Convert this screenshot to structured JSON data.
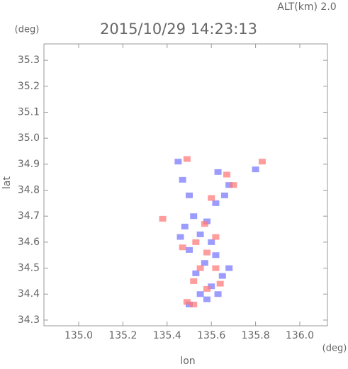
{
  "chart_data": {
    "type": "scatter",
    "title": "2015/10/29 14:23:13",
    "subtitle": "ALT(km) 2.0",
    "y_unit": "(deg)",
    "x_unit": "(deg)",
    "x_label": "lon",
    "y_label": "lat",
    "xlim": [
      134.843,
      136.125
    ],
    "ylim": [
      34.278,
      35.363
    ],
    "xticks": [
      {
        "value": 135.0,
        "label": "135.0"
      },
      135.2,
      135.4,
      135.6,
      135.8,
      {
        "value": 136.0,
        "label": "136.0"
      }
    ],
    "yticks": [
      34.3,
      34.4,
      34.5,
      34.6,
      34.7,
      34.8,
      34.9,
      {
        "value": 35.0,
        "label": "35.0"
      },
      35.1,
      35.2,
      35.3
    ],
    "series": [
      {
        "color": "#7b7bff",
        "x": [
          135.45,
          135.47,
          135.5,
          135.63,
          135.68,
          135.8,
          135.52,
          135.48,
          135.58,
          135.55,
          135.6,
          135.5,
          135.62,
          135.57,
          135.53,
          135.65,
          135.6,
          135.63,
          135.55,
          135.58,
          135.5,
          135.68,
          135.46,
          135.62,
          135.66
        ],
        "y": [
          34.91,
          34.84,
          34.78,
          34.87,
          34.82,
          34.88,
          34.7,
          34.66,
          34.68,
          34.63,
          34.6,
          34.57,
          34.55,
          34.52,
          34.48,
          34.47,
          34.43,
          34.4,
          34.4,
          34.38,
          34.36,
          34.5,
          34.62,
          34.75,
          34.78
        ]
      },
      {
        "color": "#ff7b7b",
        "x": [
          135.49,
          135.67,
          135.38,
          135.57,
          135.53,
          135.62,
          135.47,
          135.58,
          135.55,
          135.62,
          135.52,
          135.64,
          135.49,
          135.52,
          135.58,
          135.7,
          135.6,
          135.83
        ],
        "y": [
          34.92,
          34.86,
          34.69,
          34.67,
          34.6,
          34.62,
          34.58,
          34.56,
          34.5,
          34.5,
          34.45,
          34.44,
          34.37,
          34.36,
          34.42,
          34.82,
          34.77,
          34.91
        ]
      }
    ]
  }
}
